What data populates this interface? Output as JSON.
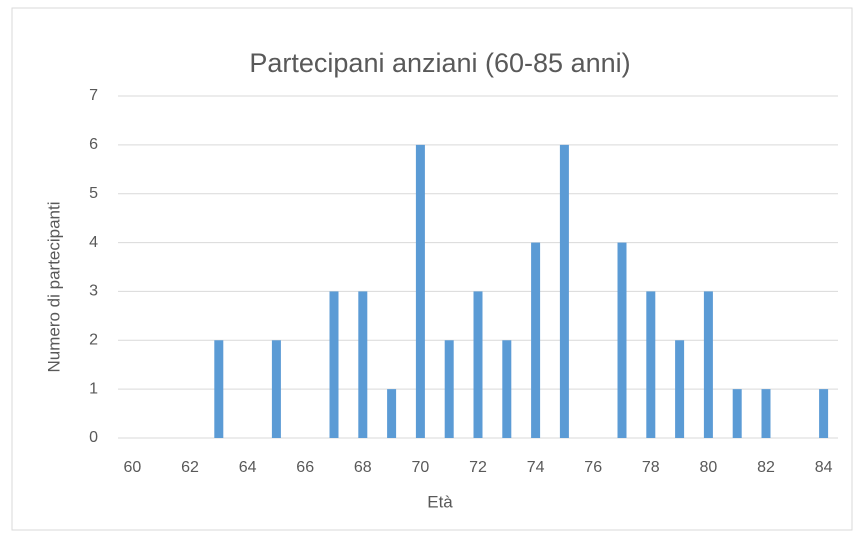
{
  "chart_data": {
    "type": "bar",
    "title": "Partecipani anziani (60-85 anni)",
    "x_label": "Età",
    "y_label": "Numero di partecipanti",
    "categories": [
      "60",
      null,
      "62",
      null,
      "64",
      null,
      "66",
      null,
      "68",
      null,
      "70",
      null,
      "72",
      null,
      "74",
      null,
      "76",
      null,
      "78",
      null,
      "80",
      null,
      "82",
      null,
      "84"
    ],
    "values": [
      0,
      0,
      0,
      2,
      0,
      2,
      0,
      3,
      3,
      1,
      6,
      2,
      3,
      2,
      4,
      6,
      0,
      4,
      3,
      2,
      3,
      1,
      1,
      0,
      1
    ],
    "color": "#5b9bd5",
    "ylim": [
      0,
      7
    ],
    "yticks": [
      0,
      1,
      2,
      3,
      4,
      5,
      6,
      7
    ],
    "grid": true
  }
}
